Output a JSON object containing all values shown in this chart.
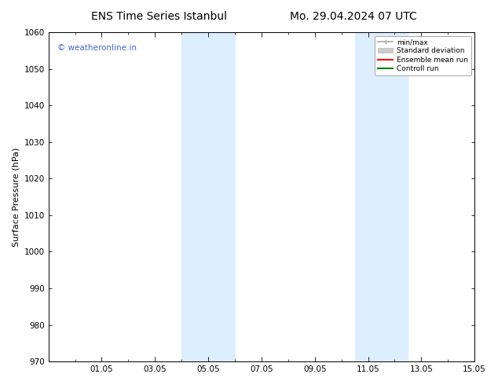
{
  "title_left": "ENS Time Series Istanbul",
  "title_right": "Mo. 29.04.2024 07 UTC",
  "ylabel": "Surface Pressure (hPa)",
  "ylim": [
    970,
    1060
  ],
  "yticks": [
    970,
    980,
    990,
    1000,
    1010,
    1020,
    1030,
    1040,
    1050,
    1060
  ],
  "xlim_start": 0.0,
  "xlim_end": 16.0,
  "xtick_positions": [
    2,
    4,
    6,
    8,
    10,
    12,
    14,
    16
  ],
  "xtick_labels": [
    "01.05",
    "03.05",
    "05.05",
    "07.05",
    "09.05",
    "11.05",
    "13.05",
    "15.05"
  ],
  "shaded_bands": [
    {
      "x_start": 5.0,
      "x_end": 7.0,
      "color": "#ddeeff"
    },
    {
      "x_start": 11.5,
      "x_end": 13.5,
      "color": "#ddeeff"
    }
  ],
  "watermark_text": "© weatheronline.in",
  "watermark_color": "#4466cc",
  "legend_items": [
    {
      "label": "min/max",
      "color": "#aaaaaa",
      "lw": 1.2
    },
    {
      "label": "Standard deviation",
      "color": "#cccccc",
      "lw": 6
    },
    {
      "label": "Ensemble mean run",
      "color": "red",
      "lw": 1.5
    },
    {
      "label": "Controll run",
      "color": "green",
      "lw": 1.5
    }
  ],
  "background_color": "#ffffff",
  "plot_bg_color": "#ffffff",
  "grid_color": "#dddddd",
  "font_size_title": 10,
  "font_size_axis": 8,
  "font_size_tick": 7.5,
  "font_size_watermark": 7.5,
  "font_size_legend": 6.5
}
